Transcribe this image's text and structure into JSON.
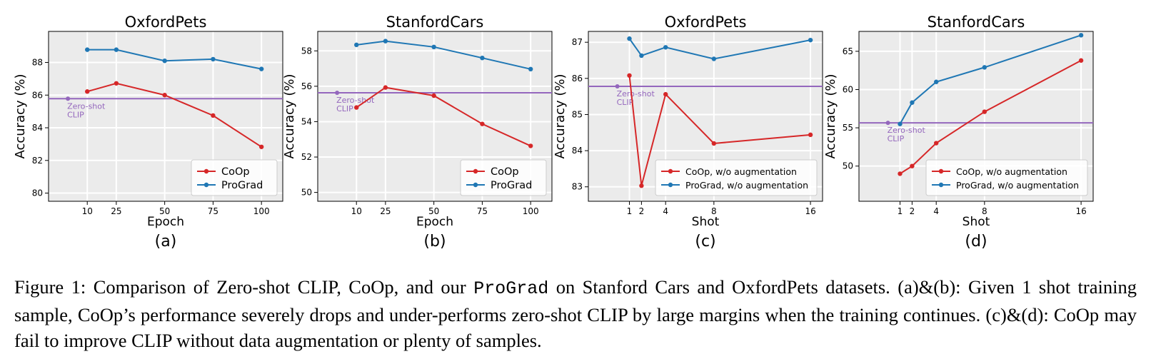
{
  "colors": {
    "coop": "#d62728",
    "prograd": "#1f77b4",
    "zeroshot": "#9467bd",
    "panel_bg": "#ebebeb",
    "grid": "#ffffff"
  },
  "chart_data": [
    {
      "type": "line",
      "panel_label": "(a)",
      "title": "OxfordPets",
      "xlabel": "Epoch",
      "ylabel": "Accuracy (%)",
      "x_ticks": [
        10,
        25,
        50,
        75,
        100
      ],
      "y_ticks": [
        80,
        82,
        84,
        86,
        88
      ],
      "xlim": [
        -10,
        111
      ],
      "ylim": [
        79.5,
        89.9
      ],
      "grid": true,
      "legend_position": "lower-right",
      "zero_shot": {
        "x": 0,
        "value": 85.78,
        "label_line1": "Zero-shot",
        "label_line2": "CLIP"
      },
      "series": [
        {
          "name": "CoOp",
          "x": [
            10,
            25,
            50,
            75,
            100
          ],
          "values": [
            86.22,
            86.72,
            86.0,
            84.75,
            82.83
          ]
        },
        {
          "name": "ProGrad",
          "x": [
            10,
            25,
            50,
            75,
            100
          ],
          "values": [
            88.78,
            88.78,
            88.1,
            88.2,
            87.6
          ]
        }
      ]
    },
    {
      "type": "line",
      "panel_label": "(b)",
      "title": "StanfordCars",
      "xlabel": "Epoch",
      "ylabel": "Accuracy (%)",
      "x_ticks": [
        10,
        25,
        50,
        75,
        100
      ],
      "y_ticks": [
        50,
        52,
        54,
        56,
        58
      ],
      "xlim": [
        -10,
        111
      ],
      "ylim": [
        49.5,
        59.1
      ],
      "grid": true,
      "legend_position": "lower-right",
      "zero_shot": {
        "x": 0,
        "value": 55.63,
        "label_line1": "Zero-shot",
        "label_line2": "CLIP"
      },
      "series": [
        {
          "name": "CoOp",
          "x": [
            10,
            25,
            50,
            75,
            100
          ],
          "values": [
            54.8,
            55.93,
            55.47,
            53.87,
            52.63
          ]
        },
        {
          "name": "ProGrad",
          "x": [
            10,
            25,
            50,
            75,
            100
          ],
          "values": [
            58.34,
            58.55,
            58.22,
            57.6,
            56.97
          ]
        }
      ]
    },
    {
      "type": "line",
      "panel_label": "(c)",
      "title": "OxfordPets",
      "xlabel": "Shot",
      "ylabel": "Accuracy (%)",
      "x_ticks": [
        1,
        2,
        4,
        8,
        16
      ],
      "y_ticks": [
        83,
        84,
        85,
        86,
        87
      ],
      "xlim": [
        -2.4,
        17.0
      ],
      "ylim": [
        82.6,
        87.3
      ],
      "grid": true,
      "legend_position": "lower-right",
      "zero_shot": {
        "x": 0,
        "value": 85.78,
        "label_line1": "Zero-shot",
        "label_line2": "CLIP"
      },
      "series": [
        {
          "name": "CoOp, w/o augmentation",
          "x": [
            1,
            2,
            4,
            8,
            16
          ],
          "values": [
            86.08,
            83.03,
            85.56,
            84.2,
            84.44
          ]
        },
        {
          "name": "ProGrad, w/o augmentation",
          "x": [
            1,
            2,
            4,
            8,
            16
          ],
          "values": [
            87.1,
            86.63,
            86.86,
            86.54,
            87.06
          ]
        }
      ]
    },
    {
      "type": "line",
      "panel_label": "(d)",
      "title": "StanfordCars",
      "xlabel": "Shot",
      "ylabel": "Accuracy (%)",
      "x_ticks": [
        1,
        2,
        4,
        8,
        16
      ],
      "y_ticks": [
        50,
        55,
        60,
        65
      ],
      "xlim": [
        -2.4,
        17.0
      ],
      "ylim": [
        45.4,
        67.6
      ],
      "grid": true,
      "legend_position": "lower-right",
      "zero_shot": {
        "x": 0,
        "value": 55.65,
        "label_line1": "Zero-shot",
        "label_line2": "CLIP"
      },
      "series": [
        {
          "name": "CoOp, w/o augmentation",
          "x": [
            1,
            2,
            4,
            8,
            16
          ],
          "values": [
            49.0,
            50.0,
            53.0,
            57.1,
            63.8
          ]
        },
        {
          "name": "ProGrad, w/o augmentation",
          "x": [
            1,
            2,
            4,
            8,
            16
          ],
          "values": [
            55.5,
            58.3,
            61.0,
            62.9,
            67.1
          ]
        }
      ]
    }
  ],
  "caption": {
    "part1": "Figure 1: Comparison of Zero-shot CLIP, CoOp, and our ",
    "method": "ProGrad",
    "part2": " on Stanford Cars and OxfordPets datasets. (a)&(b): Given 1 shot training sample, CoOp’s performance severely drops and under-performs zero-shot CLIP by large margins when the training continues. (c)&(d): CoOp may fail to improve CLIP without data augmentation or plenty of samples."
  }
}
